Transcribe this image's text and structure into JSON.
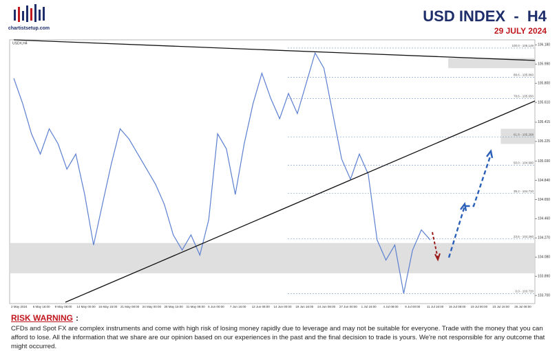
{
  "header": {
    "title": "USD INDEX  -  H4",
    "date": "29 JULY 2024",
    "logo": "chartistsetup.com"
  },
  "chart_data": {
    "type": "line",
    "symbol": "USDX,H4",
    "series": [
      {
        "name": "USDX",
        "color": "#5b7fd1",
        "values": [
          105.85,
          105.6,
          105.3,
          105.1,
          105.35,
          105.2,
          104.95,
          105.1,
          104.7,
          104.2,
          104.6,
          105.0,
          105.35,
          105.25,
          105.1,
          104.95,
          104.8,
          104.6,
          104.3,
          104.15,
          104.3,
          104.1,
          104.45,
          105.3,
          105.15,
          104.7,
          105.2,
          105.6,
          105.9,
          105.65,
          105.45,
          105.7,
          105.5,
          105.8,
          106.1,
          105.95,
          105.5,
          105.05,
          104.85,
          105.1,
          104.9,
          104.25,
          104.05,
          104.2,
          103.72,
          104.15,
          104.35,
          104.25
        ]
      }
    ],
    "ylim": [
      103.62,
      106.23
    ],
    "yticks": [
      {
        "value": 106.18,
        "label": "106.180"
      },
      {
        "value": 105.99,
        "label": "105.990"
      },
      {
        "value": 105.8,
        "label": "105.800"
      },
      {
        "value": 105.61,
        "label": "105.610"
      },
      105.415,
      105.225,
      {
        "value": 105.03,
        "label": "105.030"
      },
      {
        "value": 104.84,
        "label": "104.840"
      },
      {
        "value": 104.65,
        "label": "104.650"
      },
      {
        "value": 104.46,
        "label": "104.460"
      },
      {
        "value": 104.27,
        "label": "104.270"
      },
      {
        "value": 104.08,
        "label": "104.080"
      },
      {
        "value": 103.89,
        "label": "103.890"
      },
      {
        "value": 103.7,
        "label": "103.700"
      }
    ],
    "xlabels": [
      "2 May 2024",
      "6 May 16:00",
      "9 May 08:00",
      "14 May 00:00",
      "16 May 16:00",
      "21 May 08:00",
      "24 May 00:00",
      "28 May 16:00",
      "31 May 08:00",
      "5 Jun 00:00",
      "7 Jun 16:00",
      "12 Jun 08:00",
      "14 Jun 00:00",
      "19 Jun 16:00",
      "24 Jun 08:00",
      "27 Jun 00:00",
      "1 Jul 16:00",
      "4 Jul 08:00",
      "9 Jul 00:00",
      "11 Jul 16:00",
      "16 Jul 08:00",
      "19 Jul 00:00",
      "23 Jul 16:00",
      "26 Jul 08:00"
    ],
    "zones": [
      {
        "low": 105.95,
        "high": 106.05,
        "start": 0.835
      },
      {
        "low": 105.2,
        "high": 105.35,
        "start": 0.935
      },
      {
        "low": 103.92,
        "high": 104.22,
        "start": 0
      }
    ],
    "fib": [
      {
        "level": 106.149,
        "label": "100.0 - 106.149"
      },
      {
        "level": 105.86,
        "label": "88.6 - 105.860"
      },
      {
        "level": 105.65,
        "label": "78.6 - 105.650"
      },
      {
        "level": 105.27,
        "label": "61.8 - 105.268"
      },
      {
        "level": 104.99,
        "label": "50.0 - 104.990"
      },
      {
        "level": 104.71,
        "label": "38.2 - 104.710"
      },
      {
        "level": 104.26,
        "label": "23.6 - 104.260"
      },
      {
        "level": 103.72,
        "label": "0.0 - 103.720"
      }
    ]
  },
  "risk": {
    "title": "RISK WARNING",
    "colon": ":",
    "text": "CFDs and Spot FX are complex instruments and come with high risk of losing money rapidly due to leverage and may not be suitable for everyone. Trade with the money that you can afford to lose. All the information that we share are our opinion based on our experiences in the past and the final decision to trade is yours. We're not responsible for any outcome that might occurred."
  }
}
